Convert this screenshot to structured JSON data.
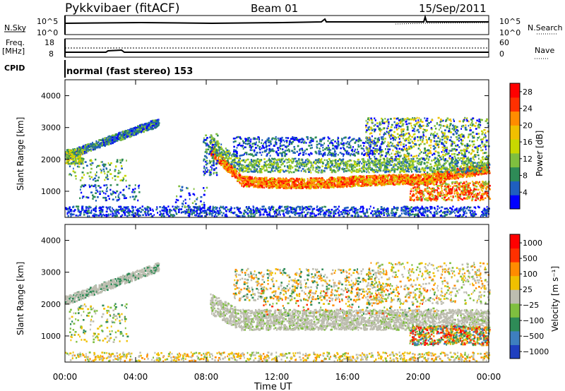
{
  "header": {
    "station": "Pykkvibaer (fitACF)",
    "beam": "Beam 01",
    "date": "15/Sep/2011"
  },
  "status_panels": {
    "nsky_label": "N.Sky",
    "nsky_ticks": [
      "10^5",
      "10^0"
    ],
    "nsearch_label": "N.Search",
    "nsearch_ticks": [
      "10^5",
      "10^0"
    ],
    "freq_label": "Freq.",
    "freq_unit": "[MHz]",
    "freq_ticks": [
      "18",
      "8"
    ],
    "nave_label": "Nave",
    "nave_ticks": [
      "60",
      "0"
    ],
    "cpid_label": "CPID",
    "cpid_text": "normal (fast stereo) 153"
  },
  "colors": {
    "power_scale": [
      "#0000ff",
      "#1f5fbf",
      "#2e8b57",
      "#7fbf3f",
      "#c8d800",
      "#f0c000",
      "#ff8c00",
      "#ff3000",
      "#ff0000"
    ],
    "velocity_scale": [
      "#1f3fbf",
      "#3e7fbf",
      "#2e8b57",
      "#7fbf3f",
      "#bdbdb0",
      "#f0c000",
      "#ff8c00",
      "#ff3000",
      "#ff0000"
    ]
  },
  "chart_data": [
    {
      "type": "heatmap",
      "name": "power",
      "ylabel": "Slant Range [km]",
      "xlabel": "Time UT",
      "x_ticks": [
        "00:00",
        "04:00",
        "08:00",
        "12:00",
        "16:00",
        "20:00",
        "00:00"
      ],
      "y_ticks": [
        "1000",
        "2000",
        "3000",
        "4000"
      ],
      "ylim": [
        180,
        4500
      ],
      "colorbar": {
        "label": "Power [dB]",
        "ticks": [
          "4",
          "8",
          "12",
          "16",
          "20",
          "24",
          "28"
        ],
        "range": [
          0,
          30
        ]
      }
    },
    {
      "type": "heatmap",
      "name": "velocity",
      "ylabel": "Slant Range [km]",
      "xlabel": "Time UT",
      "x_ticks": [
        "00:00",
        "04:00",
        "08:00",
        "12:00",
        "16:00",
        "20:00",
        "00:00"
      ],
      "y_ticks": [
        "1000",
        "2000",
        "3000",
        "4000"
      ],
      "ylim": [
        180,
        4500
      ],
      "colorbar": {
        "label": "Velocity [m s⁻¹]",
        "ticks": [
          "1000",
          "500",
          "100",
          "25",
          "−25",
          "−100",
          "−500",
          "−1000"
        ]
      }
    }
  ]
}
